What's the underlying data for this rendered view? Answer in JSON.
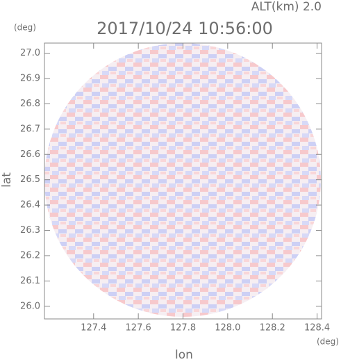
{
  "chart_data": {
    "type": "radar-image",
    "title": "2017/10/24 10:56:00",
    "subtitle": "ALT(km) 2.0",
    "x_label": "lon",
    "y_label": "lat",
    "x_unit": "(deg)",
    "y_unit": "(deg)",
    "xlim": [
      127.18,
      128.42
    ],
    "ylim": [
      25.95,
      27.04
    ],
    "xticks": [
      127.4,
      127.6,
      {
        "value": 127.8,
        "label": "127.8"
      },
      {
        "value": 128,
        "label": "128.0"
      },
      128.2,
      128.4
    ],
    "yticks": [
      {
        "value": 26,
        "label": "26.0"
      },
      26.1,
      26.2,
      26.3,
      26.4,
      26.5,
      26.6,
      26.7,
      26.8,
      26.9,
      {
        "value": 27,
        "label": "27.0"
      }
    ]
  }
}
